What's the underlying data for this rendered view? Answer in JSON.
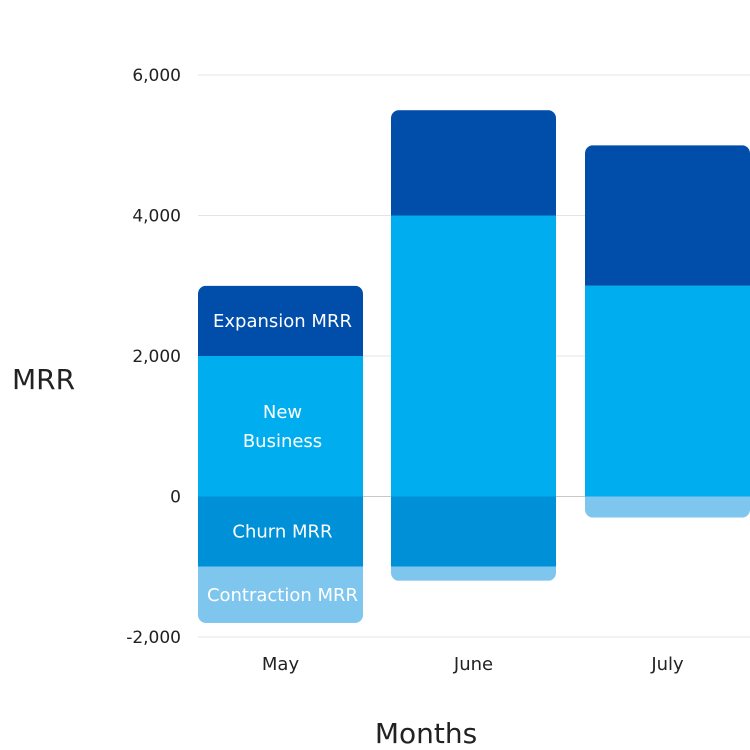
{
  "chart_data": {
    "type": "bar",
    "stacked": true,
    "categories": [
      "May",
      "June",
      "July"
    ],
    "xlabel": "Months",
    "ylabel": "MRR",
    "ylim": [
      -2000,
      6000
    ],
    "yticks": [
      -2000,
      0,
      2000,
      4000,
      6000
    ],
    "ytick_labels": [
      "-2,000",
      "0",
      "2,000",
      "4,000",
      "6,000"
    ],
    "grid": true,
    "series": [
      {
        "key": "new_business",
        "name": "New Business",
        "values": [
          2000,
          4000,
          3000
        ],
        "color": "#00AEEF",
        "direction": "positive"
      },
      {
        "key": "expansion",
        "name": "Expansion MRR",
        "values": [
          1000,
          1500,
          2000
        ],
        "color": "#004DAA",
        "direction": "positive"
      },
      {
        "key": "churn",
        "name": "Churn MRR",
        "values": [
          -1000,
          -1000,
          0
        ],
        "color": "#0090D8",
        "direction": "negative"
      },
      {
        "key": "contraction",
        "name": "Contraction MRR",
        "values": [
          -800,
          -200,
          -300
        ],
        "color": "#7FC6EE",
        "direction": "negative"
      }
    ],
    "segment_labels_on": "May"
  },
  "segment_label_lines": {
    "expansion": [
      "Expansion MRR"
    ],
    "new_business": [
      "New",
      "Business"
    ],
    "churn": [
      "Churn MRR"
    ],
    "contraction": [
      "Contraction MRR"
    ]
  }
}
